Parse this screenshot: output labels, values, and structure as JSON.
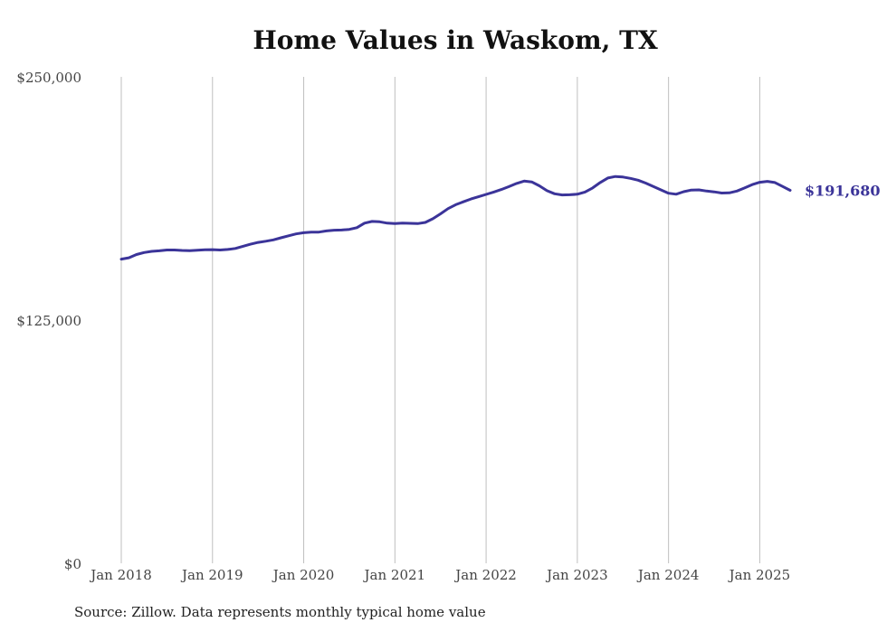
{
  "source_note": "Source: Zillow. Data represents monthly typical home value",
  "colors": {
    "line": "#3b3499",
    "grid": "#bfbfbf",
    "text": "#444444"
  },
  "chart_data": {
    "type": "line",
    "title": "Home Values in Waskom, TX",
    "xlabel": "",
    "ylabel": "",
    "ylim": [
      0,
      250000
    ],
    "yticks": [
      {
        "value": 0,
        "label": "$0"
      },
      {
        "value": 125000,
        "label": "$125,000"
      },
      {
        "value": 250000,
        "label": "$250,000"
      }
    ],
    "xticks": [
      {
        "index": 0,
        "label": "Jan 2018"
      },
      {
        "index": 12,
        "label": "Jan 2019"
      },
      {
        "index": 24,
        "label": "Jan 2020"
      },
      {
        "index": 36,
        "label": "Jan 2021"
      },
      {
        "index": 48,
        "label": "Jan 2022"
      },
      {
        "index": 60,
        "label": "Jan 2023"
      },
      {
        "index": 72,
        "label": "Jan 2024"
      },
      {
        "index": 84,
        "label": "Jan 2025"
      }
    ],
    "grid": "vertical",
    "end_label": "$191,680",
    "series": [
      {
        "name": "Typical home value",
        "start": "Jan 2018",
        "frequency": "monthly",
        "values": [
          156300,
          157000,
          158700,
          159700,
          160300,
          160600,
          161000,
          161000,
          160800,
          160700,
          160900,
          161100,
          161200,
          161000,
          161300,
          161800,
          162900,
          164000,
          164900,
          165500,
          166200,
          167300,
          168300,
          169300,
          169900,
          170200,
          170200,
          170800,
          171200,
          171300,
          171600,
          172500,
          174800,
          175700,
          175500,
          174800,
          174600,
          174800,
          174700,
          174600,
          175200,
          177100,
          179600,
          182300,
          184300,
          185800,
          187200,
          188400,
          189600,
          190800,
          192100,
          193600,
          195200,
          196400,
          196000,
          194000,
          191500,
          189900,
          189300,
          189400,
          189700,
          190800,
          192900,
          195700,
          198000,
          198800,
          198500,
          197800,
          196900,
          195400,
          193700,
          191900,
          190200,
          189700,
          191000,
          191800,
          191900,
          191300,
          190900,
          190300,
          190400,
          191300,
          192900,
          194600,
          195800,
          196300,
          195700,
          193700,
          191680
        ]
      }
    ]
  }
}
